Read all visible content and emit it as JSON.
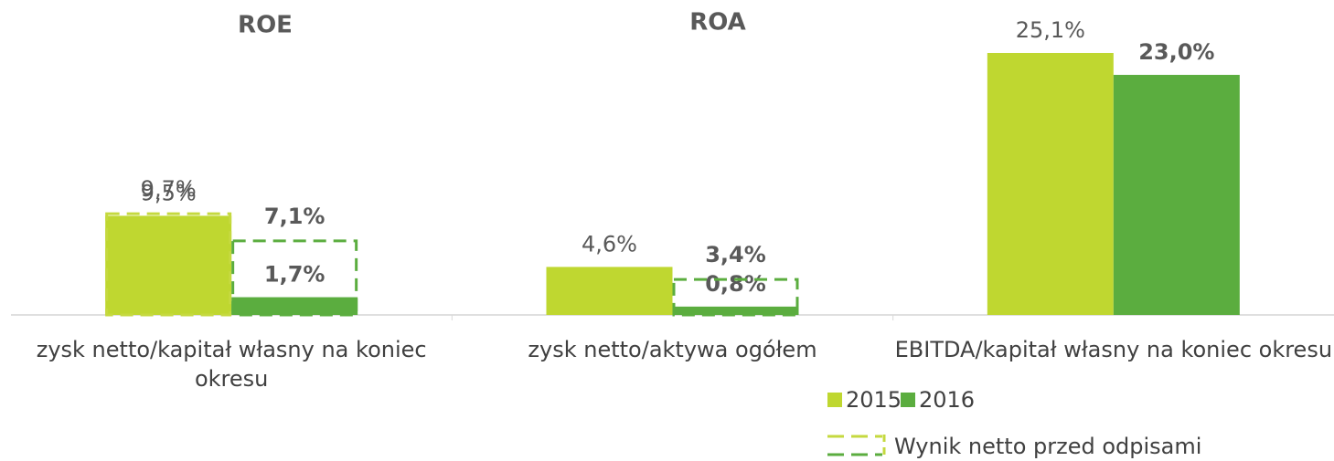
{
  "chart_data": {
    "type": "bar",
    "annotations": [
      "ROE",
      "ROA"
    ],
    "categories": [
      "zysk netto/kapitał własny na koniec okresu",
      "zysk netto/aktywa ogółem",
      "EBITDA/kapitał własny na koniec okresu"
    ],
    "series": [
      {
        "name": "2015",
        "color": "#bfd730",
        "values": [
          9.5,
          4.6,
          25.1
        ],
        "value_labels": [
          "9,5%",
          "4,6%",
          "25,1%"
        ]
      },
      {
        "name": "2016",
        "color": "#5bad3f",
        "values": [
          1.7,
          0.8,
          23.0
        ],
        "value_labels": [
          "1,7%",
          "0,8%",
          "23,0%"
        ]
      }
    ],
    "dashed": {
      "name": "Wynik netto przed odpisami",
      "series": [
        {
          "color": "#c5d93f",
          "values": [
            9.7,
            null,
            null
          ],
          "value_labels": [
            "9,7%",
            null,
            null
          ]
        },
        {
          "color": "#5bad3f",
          "values": [
            7.1,
            3.4,
            null
          ],
          "value_labels": [
            "7,1%",
            "3,4%",
            null
          ]
        }
      ]
    }
  }
}
